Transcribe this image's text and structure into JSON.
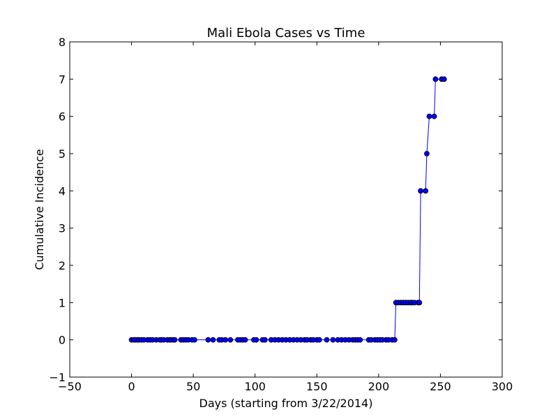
{
  "chart_data": {
    "type": "line",
    "title": "Mali Ebola Cases vs Time",
    "xlabel": "Days (starting from 3/22/2014)",
    "ylabel": "Cumulative Incidence",
    "xlim": [
      -50,
      300
    ],
    "ylim": [
      -1,
      8
    ],
    "xticks": [
      -50,
      0,
      50,
      100,
      150,
      200,
      250,
      300
    ],
    "yticks": [
      -1,
      0,
      1,
      2,
      3,
      4,
      5,
      6,
      7,
      8
    ],
    "grid": false,
    "legend": "none",
    "series": [
      {
        "color": "#0000ff",
        "marker": "circle",
        "x": [
          0,
          2,
          3,
          5,
          6,
          8,
          10,
          13,
          15,
          17,
          20,
          23,
          24,
          26,
          29,
          31,
          32,
          34,
          35,
          40,
          42,
          44,
          46,
          49,
          51,
          62,
          66,
          71,
          73,
          76,
          80,
          86,
          88,
          90,
          92,
          99,
          101,
          106,
          108,
          113,
          116,
          119,
          122,
          125,
          128,
          131,
          134,
          137,
          140,
          142,
          145,
          147,
          150,
          152,
          158,
          163,
          167,
          170,
          173,
          176,
          179,
          181,
          183,
          185,
          192,
          194,
          197,
          199,
          201,
          203,
          206,
          208,
          211,
          213,
          214,
          216,
          218,
          220,
          222,
          224,
          226,
          227,
          229,
          232,
          233,
          234,
          238,
          239,
          241,
          245,
          246,
          251,
          253
        ],
        "y": [
          0,
          0,
          0,
          0,
          0,
          0,
          0,
          0,
          0,
          0,
          0,
          0,
          0,
          0,
          0,
          0,
          0,
          0,
          0,
          0,
          0,
          0,
          0,
          0,
          0,
          0,
          0,
          0,
          0,
          0,
          0,
          0,
          0,
          0,
          0,
          0,
          0,
          0,
          0,
          0,
          0,
          0,
          0,
          0,
          0,
          0,
          0,
          0,
          0,
          0,
          0,
          0,
          0,
          0,
          0,
          0,
          0,
          0,
          0,
          0,
          0,
          0,
          0,
          0,
          0,
          0,
          0,
          0,
          0,
          0,
          0,
          0,
          0,
          0,
          1,
          1,
          1,
          1,
          1,
          1,
          1,
          1,
          1,
          1,
          1,
          4,
          4,
          5,
          6,
          6,
          7,
          7,
          7
        ]
      }
    ]
  }
}
